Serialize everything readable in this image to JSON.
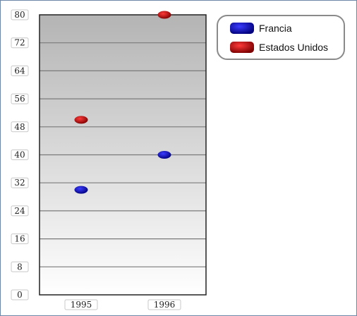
{
  "chart_data": {
    "type": "scatter",
    "title": "",
    "xlabel": "",
    "ylabel": "",
    "categories": [
      "1995",
      "1996"
    ],
    "ylim": [
      0,
      80
    ],
    "yticks": [
      0,
      8,
      16,
      24,
      32,
      40,
      48,
      56,
      64,
      72,
      80
    ],
    "grid": true,
    "legend_position": "top-right",
    "series": [
      {
        "name": "Francia",
        "color": "#0a0aaa",
        "values": [
          30,
          40
        ]
      },
      {
        "name": "Estados Unidos",
        "color": "#b00000",
        "values": [
          50,
          80
        ]
      }
    ]
  }
}
